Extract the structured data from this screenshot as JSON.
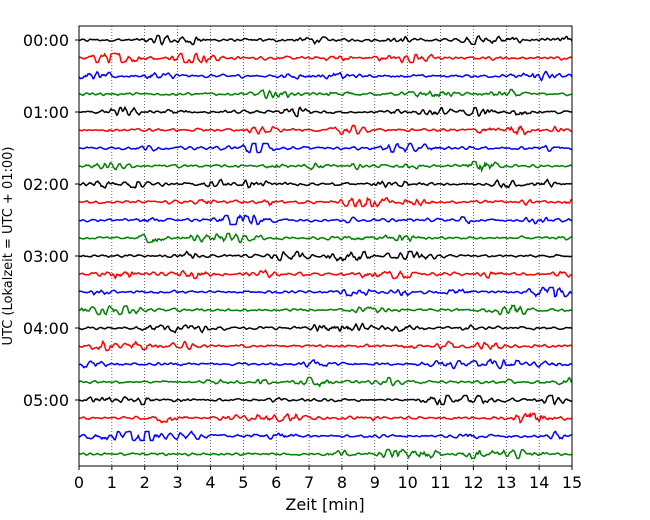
{
  "chart_data": {
    "type": "line",
    "title": "",
    "xlabel": "Zeit  [min]",
    "ylabel": "UTC (Lokalzeit = UTC + 01:00)",
    "xlim": [
      0,
      15
    ],
    "x_ticks": [
      "0",
      "1",
      "2",
      "3",
      "4",
      "5",
      "6",
      "7",
      "8",
      "9",
      "10",
      "11",
      "12",
      "13",
      "14",
      "15"
    ],
    "y_ticks": [
      "00:00",
      "01:00",
      "02:00",
      "03:00",
      "04:00",
      "05:00"
    ],
    "grid": "vertical dotted lines at each minute",
    "trace_interval_min": 15,
    "trace_colors": [
      "#000000",
      "#ff0000",
      "#0000ff",
      "#008000"
    ],
    "series": [
      {
        "start": "00:00",
        "color": "#000000"
      },
      {
        "start": "00:15",
        "color": "#ff0000"
      },
      {
        "start": "00:30",
        "color": "#0000ff"
      },
      {
        "start": "00:45",
        "color": "#008000"
      },
      {
        "start": "01:00",
        "color": "#000000"
      },
      {
        "start": "01:15",
        "color": "#ff0000"
      },
      {
        "start": "01:30",
        "color": "#0000ff"
      },
      {
        "start": "01:45",
        "color": "#008000"
      },
      {
        "start": "02:00",
        "color": "#000000"
      },
      {
        "start": "02:15",
        "color": "#ff0000"
      },
      {
        "start": "02:30",
        "color": "#0000ff"
      },
      {
        "start": "02:45",
        "color": "#008000"
      },
      {
        "start": "03:00",
        "color": "#000000"
      },
      {
        "start": "03:15",
        "color": "#ff0000"
      },
      {
        "start": "03:30",
        "color": "#0000ff"
      },
      {
        "start": "03:45",
        "color": "#008000"
      },
      {
        "start": "04:00",
        "color": "#000000"
      },
      {
        "start": "04:15",
        "color": "#ff0000"
      },
      {
        "start": "04:30",
        "color": "#0000ff"
      },
      {
        "start": "04:45",
        "color": "#008000"
      },
      {
        "start": "05:00",
        "color": "#000000"
      },
      {
        "start": "05:15",
        "color": "#ff0000"
      },
      {
        "start": "05:30",
        "color": "#0000ff"
      },
      {
        "start": "05:45",
        "color": "#008000"
      }
    ]
  }
}
